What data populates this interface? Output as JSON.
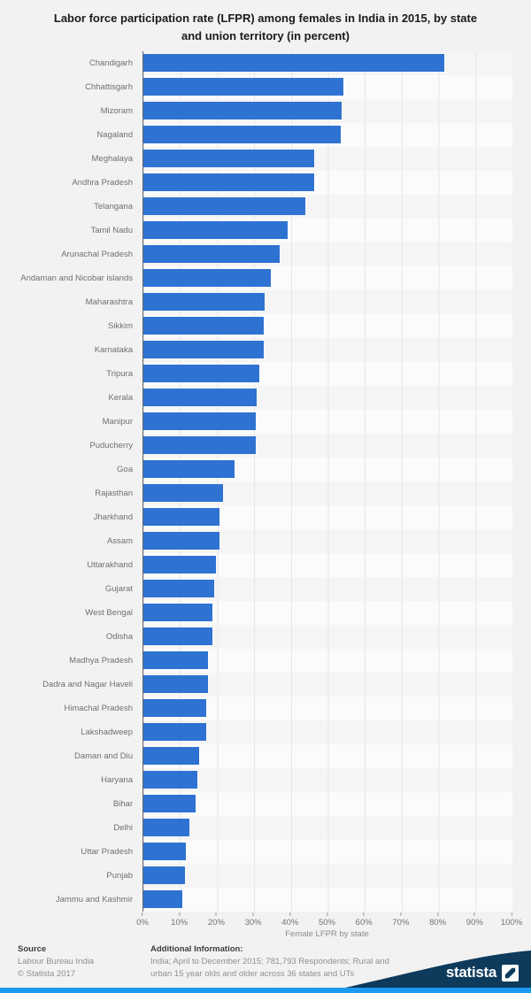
{
  "title_lines": [
    "Labor force participation rate (LFPR) among females in India in 2015, by state",
    "and union territory (in percent)"
  ],
  "chart_data": {
    "type": "bar",
    "orientation": "horizontal",
    "title": "Labor force participation rate (LFPR) among females in India in 2015, by state and union territory (in percent)",
    "categories": [
      "Chandigarh",
      "Chhattisgarh",
      "Mizoram",
      "Nagaland",
      "Meghalaya",
      "Andhra Pradesh",
      "Telangana",
      "Tamil Nadu",
      "Arunachal Pradesh",
      "Andaman and Nicobar islands",
      "Maharashtra",
      "Sikkim",
      "Karnataka",
      "Tripura",
      "Kerala",
      "Manipur",
      "Puducherry",
      "Goa",
      "Rajasthan",
      "Jharkhand",
      "Assam",
      "Uttarakhand",
      "Gujarat",
      "West Bengal",
      "Odisha",
      "Madhya Pradesh",
      "Dadra and Nagar Haveli",
      "Himachal Pradesh",
      "Lakshadweep",
      "Daman and Diu",
      "Haryana",
      "Bihar",
      "Delhi",
      "Uttar Pradesh",
      "Punjab",
      "Jammu and Kashmir"
    ],
    "values": [
      81.6,
      54.1,
      53.8,
      53.4,
      46.4,
      46.3,
      43.8,
      39.2,
      37.0,
      34.6,
      32.9,
      32.7,
      32.6,
      31.5,
      30.7,
      30.4,
      30.4,
      24.7,
      21.6,
      20.6,
      20.6,
      19.6,
      19.2,
      18.7,
      18.6,
      17.5,
      17.5,
      17.0,
      17.0,
      15.2,
      14.7,
      14.2,
      12.4,
      11.4,
      11.3,
      10.6
    ],
    "xlabel": "Female LFPR by state",
    "xlim": [
      0,
      100
    ],
    "x_tick_labels": [
      "0%",
      "10%",
      "20%",
      "30%",
      "40%",
      "50%",
      "60%",
      "70%",
      "80%",
      "90%",
      "100%"
    ],
    "grid": true,
    "legend": false
  },
  "colors": {
    "bar": "#2e72d2",
    "background": "#f2f2f2",
    "brand_navy": "#0e3a5c",
    "accent_strip": "#1c9af0"
  },
  "footer": {
    "source_label": "Source",
    "source_lines": [
      "Labour Bureau India",
      "© Statista 2017"
    ],
    "additional_label": "Additional Information:",
    "additional_lines": [
      "India; April to December 2015; 781,793 Respondents; Rural and",
      "urban 15 year olds and older across 36 states and UTs"
    ],
    "brand": "statista"
  }
}
